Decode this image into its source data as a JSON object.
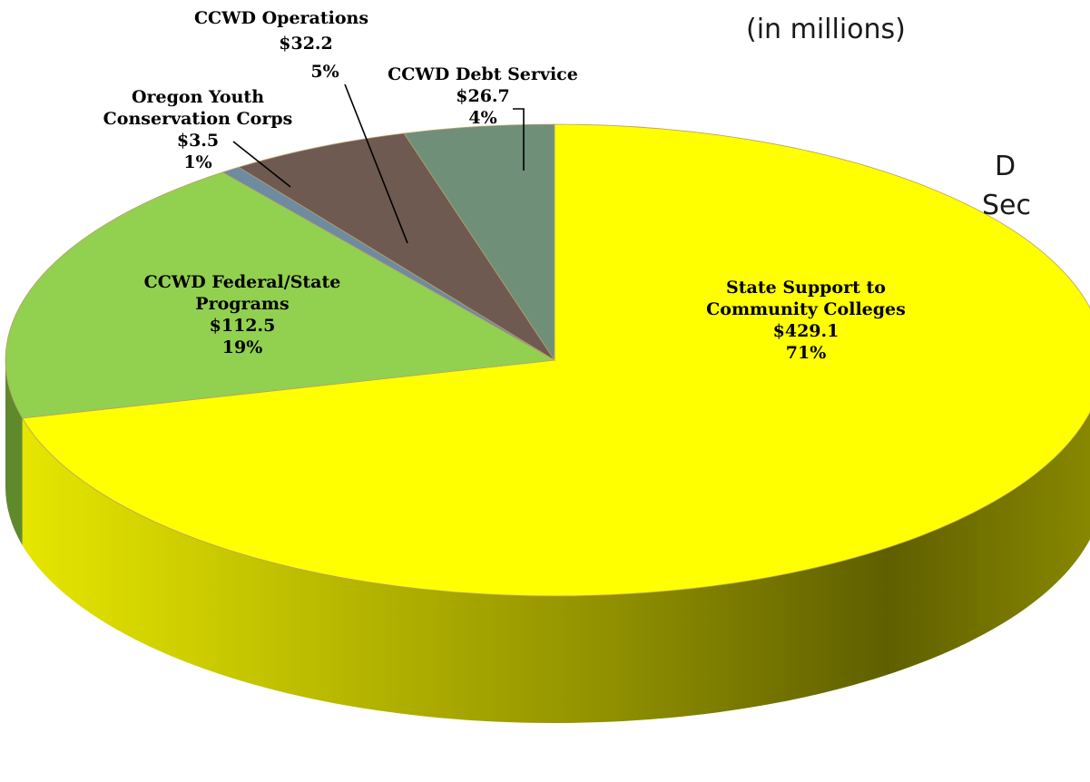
{
  "chart_data": {
    "type": "pie",
    "subtitle": "(in millions)",
    "title_fragment_1": "D",
    "title_fragment_2": "Sec",
    "slices": [
      {
        "name": "State Support to Community Colleges",
        "label_lines": [
          "State Support to",
          "Community Colleges",
          "$429.1",
          "71%"
        ],
        "value": 429.1,
        "percent": 71,
        "color": "#ffff00",
        "side_color": "#9c9c00"
      },
      {
        "name": "CCWD Federal/State Programs",
        "label_lines": [
          "CCWD Federal/State",
          "Programs",
          "$112.5",
          "19%"
        ],
        "value": 112.5,
        "percent": 19,
        "color": "#92d050",
        "side_color": "#5f8a2c"
      },
      {
        "name": "Oregon Youth Conservation Corps",
        "label_lines": [
          "Oregon Youth",
          "Conservation Corps",
          "$3.5",
          "1%"
        ],
        "value": 3.5,
        "percent": 1,
        "color": "#6e8ba0",
        "side_color": "#48606f"
      },
      {
        "name": "CCWD Operations",
        "label_lines": [
          "CCWD Operations",
          "$32.2",
          "5%"
        ],
        "value": 32.2,
        "percent": 5,
        "color": "#6f5a52",
        "side_color": "#4a3b35"
      },
      {
        "name": "CCWD Debt Service",
        "label_lines": [
          "CCWD Debt Service",
          "$26.7",
          "4%"
        ],
        "value": 26.7,
        "percent": 4,
        "color": "#6f8f78",
        "side_color": "#4a634f"
      }
    ]
  }
}
